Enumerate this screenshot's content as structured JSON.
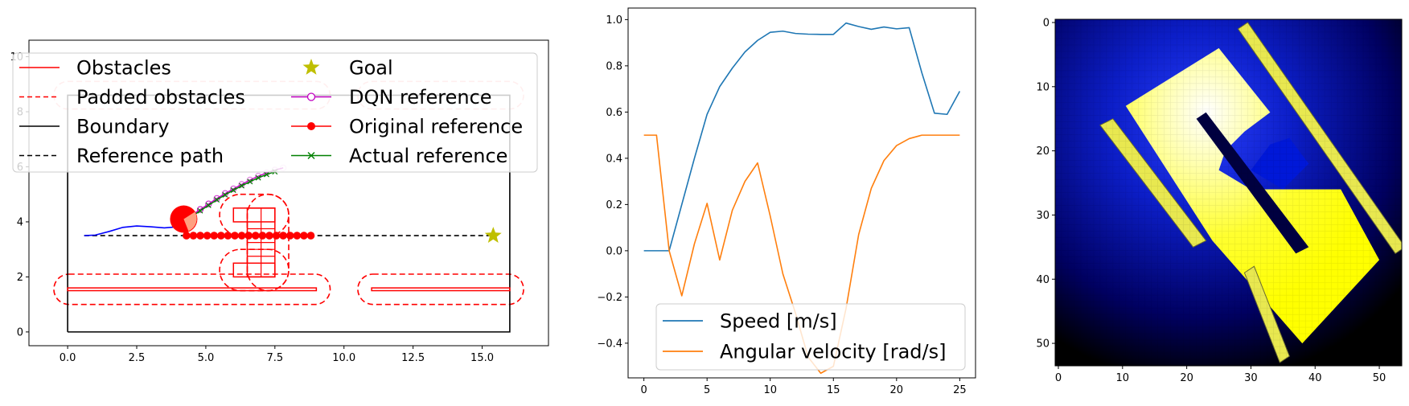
{
  "chart_data": [
    {
      "type": "line",
      "title": "",
      "xlabel": "",
      "ylabel": "",
      "xlim": [
        -1.4,
        17.4
      ],
      "ylim": [
        -0.5,
        10.6
      ],
      "xticks": [
        "0.0",
        "2.5",
        "5.0",
        "7.5",
        "10.0",
        "12.5",
        "15.0"
      ],
      "xtick_values": [
        0,
        2.5,
        5,
        7.5,
        10,
        12.5,
        15
      ],
      "yticks": [
        "0",
        "2",
        "4",
        "6",
        "8",
        "10"
      ],
      "ytick_values": [
        0,
        2,
        4,
        6,
        8,
        10
      ],
      "legend": {
        "placement": "top",
        "entries": [
          {
            "label": "Obstacles",
            "style": "solid",
            "color": "#ff0000"
          },
          {
            "label": "Padded obstacles",
            "style": "dashed",
            "color": "#ff0000"
          },
          {
            "label": "Boundary",
            "style": "solid",
            "color": "#000000"
          },
          {
            "label": "Reference path",
            "style": "dashed",
            "color": "#000000"
          },
          {
            "label": "Goal",
            "style": "star",
            "color": "#bfbf00"
          },
          {
            "label": "DQN reference",
            "style": "line-open-circle",
            "color": "#c000c0"
          },
          {
            "label": "Original reference",
            "style": "line-filled-circle",
            "color": "#ff0000"
          },
          {
            "label": "Actual reference",
            "style": "line-x",
            "color": "#008000"
          }
        ]
      },
      "boundary": [
        [
          0,
          0
        ],
        [
          16,
          0
        ],
        [
          16,
          8.6
        ],
        [
          0,
          8.6
        ],
        [
          0,
          0
        ]
      ],
      "obstacles": [
        {
          "x": [
            0,
            9
          ],
          "y": [
            1.5,
            1.6
          ]
        },
        {
          "x": [
            11,
            16
          ],
          "y": [
            1.5,
            1.6
          ]
        },
        {
          "x": [
            6,
            7.5
          ],
          "y": [
            2,
            2.5
          ]
        },
        {
          "x": [
            6,
            7.5
          ],
          "y": [
            4,
            4.5
          ]
        },
        {
          "x": [
            6.5,
            7.5
          ],
          "y": [
            2,
            4.5
          ]
        }
      ],
      "padded_obstacles": [
        {
          "x": [
            -0.5,
            9.5
          ],
          "y": [
            1.0,
            2.1
          ]
        },
        {
          "x": [
            10.5,
            16.5
          ],
          "y": [
            1.0,
            2.1
          ]
        },
        {
          "x": [
            5.5,
            8.0
          ],
          "y": [
            1.5,
            3.0
          ]
        },
        {
          "x": [
            5.5,
            8.0
          ],
          "y": [
            3.5,
            5.0
          ]
        },
        {
          "x": [
            6.5,
            8.0
          ],
          "y": [
            1.5,
            5.0
          ]
        },
        {
          "x": [
            -0.5,
            9.5
          ],
          "y": [
            8.1,
            9.1
          ]
        },
        {
          "x": [
            10.5,
            16.5
          ],
          "y": [
            8.1,
            9.1
          ]
        }
      ],
      "reference_path": {
        "x": [
          0.6,
          15.4
        ],
        "y": [
          3.5,
          3.5
        ]
      },
      "goal": {
        "x": 15.4,
        "y": 3.5
      },
      "vehicle": {
        "x": 4.2,
        "y": 4.1
      },
      "trajectory": {
        "x": [
          0.6,
          1.0,
          1.5,
          2.0,
          2.5,
          3.0,
          3.5,
          4.0,
          4.2
        ],
        "y": [
          3.5,
          3.52,
          3.65,
          3.8,
          3.85,
          3.82,
          3.78,
          3.82,
          3.9
        ]
      },
      "original_reference": {
        "x": [
          4.3,
          4.55,
          4.8,
          5.05,
          5.3,
          5.55,
          5.8,
          6.05,
          6.3,
          6.55,
          6.8,
          7.05,
          7.3,
          7.55,
          7.8,
          8.05,
          8.3,
          8.55,
          8.8
        ],
        "y": [
          3.5,
          3.5,
          3.5,
          3.5,
          3.5,
          3.5,
          3.5,
          3.5,
          3.5,
          3.5,
          3.5,
          3.5,
          3.5,
          3.5,
          3.5,
          3.5,
          3.5,
          3.5,
          3.5
        ]
      },
      "dqn_reference": {
        "x": [
          4.5,
          4.8,
          5.1,
          5.4,
          5.7,
          6.0,
          6.3,
          6.6,
          6.9,
          7.2,
          7.5,
          7.8
        ],
        "y": [
          4.25,
          4.45,
          4.65,
          4.85,
          5.03,
          5.2,
          5.36,
          5.52,
          5.66,
          5.78,
          5.88,
          5.96
        ]
      },
      "actual_reference": {
        "x": [
          4.5,
          4.8,
          5.1,
          5.4,
          5.7,
          6.0,
          6.3,
          6.6,
          6.9,
          7.2,
          7.5
        ],
        "y": [
          4.2,
          4.4,
          4.6,
          4.8,
          4.98,
          5.15,
          5.31,
          5.46,
          5.6,
          5.72,
          5.82
        ]
      }
    },
    {
      "type": "line",
      "title": "",
      "xlabel": "",
      "ylabel": "",
      "xlim": [
        -1.25,
        26.25
      ],
      "ylim": [
        -0.55,
        1.05
      ],
      "xticks": [
        "0",
        "5",
        "10",
        "15",
        "20",
        "25"
      ],
      "xtick_values": [
        0,
        5,
        10,
        15,
        20,
        25
      ],
      "yticks": [
        "−0.4",
        "−0.2",
        "0.0",
        "0.2",
        "0.4",
        "0.6",
        "0.8",
        "1.0"
      ],
      "ytick_values": [
        -0.4,
        -0.2,
        0,
        0.2,
        0.4,
        0.6,
        0.8,
        1.0
      ],
      "legend": {
        "placement": "lower-center"
      },
      "x": [
        0,
        1,
        2,
        3,
        4,
        5,
        6,
        7,
        8,
        9,
        10,
        11,
        12,
        13,
        14,
        15,
        16,
        17,
        18,
        19,
        20,
        21,
        22,
        23,
        24,
        25
      ],
      "series": [
        {
          "name": "Speed [m/s]",
          "color": "#1f77b4",
          "values": [
            0,
            0,
            0,
            0.2,
            0.4,
            0.59,
            0.71,
            0.79,
            0.86,
            0.91,
            0.945,
            0.95,
            0.94,
            0.937,
            0.936,
            0.936,
            0.985,
            0.97,
            0.958,
            0.968,
            0.96,
            0.965,
            0.77,
            0.595,
            0.59,
            0.69
          ]
        },
        {
          "name": "Angular velocity [rad/s]",
          "color": "#ff7f0e",
          "values": [
            0.5,
            0.5,
            0,
            -0.195,
            0.03,
            0.205,
            -0.04,
            0.175,
            0.3,
            0.38,
            0.15,
            -0.1,
            -0.27,
            -0.46,
            -0.53,
            -0.5,
            -0.25,
            0.07,
            0.27,
            0.39,
            0.455,
            0.485,
            0.5,
            0.5,
            0.5,
            0.5
          ]
        }
      ]
    },
    {
      "type": "heatmap",
      "title": "",
      "xlabel": "",
      "ylabel": "",
      "xlim": [
        -0.5,
        53.5
      ],
      "ylim": [
        53.5,
        -0.5
      ],
      "xticks": [
        "0",
        "10",
        "20",
        "30",
        "40",
        "50"
      ],
      "xtick_values": [
        0,
        10,
        20,
        30,
        40,
        50
      ],
      "yticks": [
        "0",
        "10",
        "20",
        "30",
        "40",
        "50"
      ],
      "ytick_values": [
        0,
        10,
        20,
        30,
        40,
        50
      ],
      "colormap": [
        "#000000",
        "#0000c8",
        "#ffff00",
        "#ffffff"
      ],
      "grid_size": [
        54,
        54
      ],
      "regions": {
        "free_space": [
          [
            10.5,
            13
          ],
          [
            25,
            4
          ],
          [
            33,
            14
          ],
          [
            29,
            17
          ],
          [
            26,
            20
          ],
          [
            25,
            23
          ],
          [
            30,
            26
          ],
          [
            44,
            26
          ],
          [
            50,
            37
          ],
          [
            38,
            50
          ],
          [
            24,
            34
          ]
        ],
        "left_wall": [
          [
            6.5,
            16
          ],
          [
            8.5,
            15
          ],
          [
            23,
            34
          ],
          [
            21,
            35
          ]
        ],
        "right_wall": [
          [
            28,
            1
          ],
          [
            29.5,
            0
          ],
          [
            54,
            35
          ],
          [
            52.5,
            36
          ]
        ],
        "lower_wall": [
          [
            29,
            39
          ],
          [
            30.5,
            38
          ],
          [
            36,
            52
          ],
          [
            34.5,
            53
          ]
        ],
        "slot_a": [
          [
            21.5,
            15
          ],
          [
            23,
            14
          ],
          [
            39,
            35
          ],
          [
            37,
            36
          ]
        ],
        "goal_bay": [
          [
            33,
            19
          ],
          [
            36,
            18
          ],
          [
            39,
            22
          ],
          [
            35,
            26
          ],
          [
            30,
            23
          ]
        ]
      }
    }
  ]
}
